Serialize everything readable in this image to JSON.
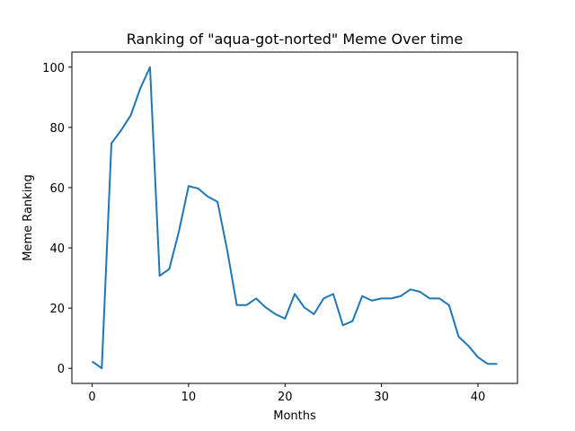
{
  "chart_data": {
    "type": "line",
    "title": "Ranking of \"aqua-got-norted\" Meme Over time",
    "xlabel": "Months",
    "ylabel": "Meme Ranking",
    "xlim": [
      -2.1,
      44.1
    ],
    "ylim": [
      -5,
      105
    ],
    "xticks": [
      0,
      10,
      20,
      30,
      40
    ],
    "yticks": [
      0,
      20,
      40,
      60,
      80,
      100
    ],
    "grid": false,
    "series": [
      {
        "color": "#1f77b4",
        "x": [
          0,
          1,
          2,
          3,
          4,
          5,
          6,
          7,
          8,
          9,
          10,
          11,
          12,
          13,
          14,
          15,
          16,
          17,
          18,
          19,
          20,
          21,
          22,
          23,
          24,
          25,
          26,
          27,
          28,
          29,
          30,
          31,
          32,
          33,
          34,
          35,
          36,
          37,
          38,
          39,
          40,
          41,
          42
        ],
        "y": [
          2.3,
          0,
          74.7,
          79,
          84,
          93,
          100,
          30.7,
          33,
          45.5,
          60.5,
          59.7,
          57,
          55.3,
          39.3,
          21,
          21,
          23.2,
          20.2,
          18,
          16.5,
          24.7,
          20.2,
          18,
          23.2,
          24.7,
          14.3,
          15.7,
          24,
          22.5,
          23.2,
          23.2,
          24,
          26.2,
          25.4,
          23.2,
          23.2,
          21,
          10.5,
          7.5,
          3.7,
          1.5,
          1.5
        ]
      }
    ]
  }
}
